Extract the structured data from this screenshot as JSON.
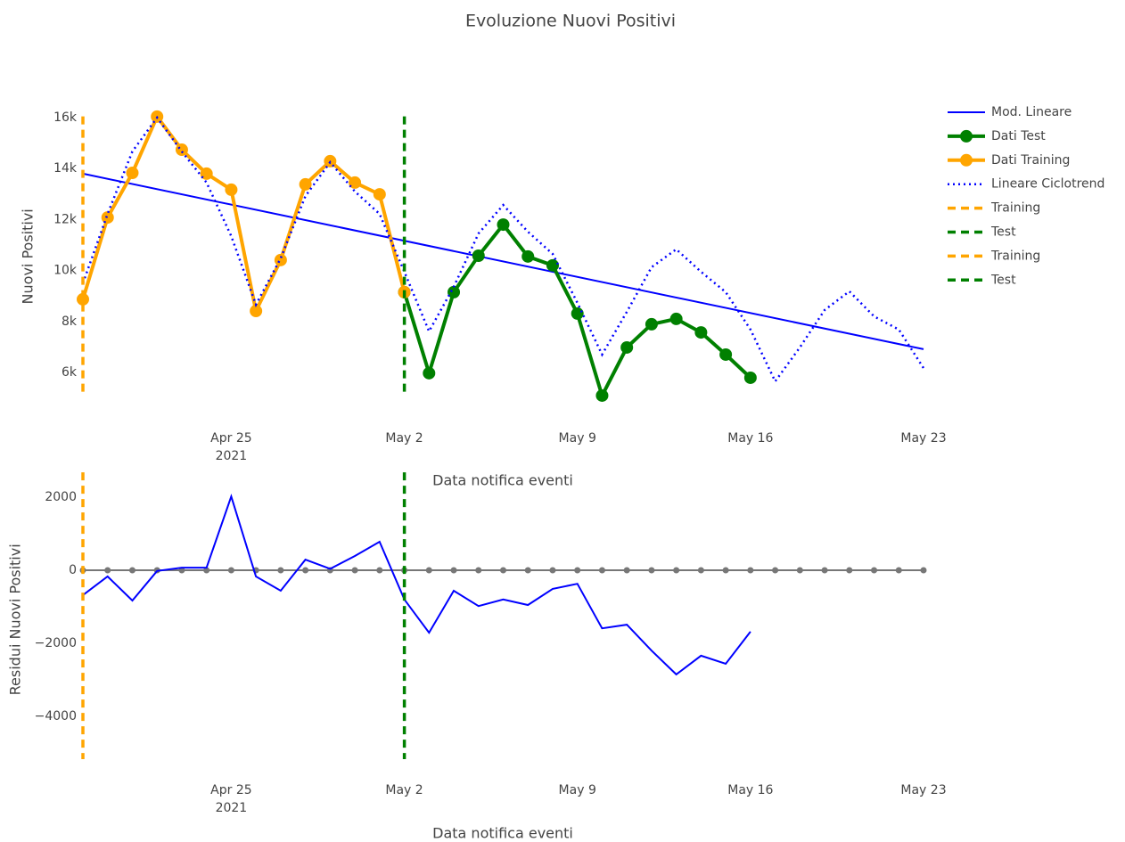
{
  "chart_data": [
    {
      "type": "line",
      "title": "Evoluzione Nuovi Positivi",
      "x_label": "Data notifica eventi",
      "y_label": "Nuovi Positivi",
      "xlim": [
        "2021-04-19",
        "2021-05-23"
      ],
      "xticks": [
        {
          "value": "2021-04-25",
          "label": "Apr 25"
        },
        {
          "value": "2021-05-02",
          "label": "May 2"
        },
        {
          "value": "2021-05-09",
          "label": "May 9"
        },
        {
          "value": "2021-05-16",
          "label": "May 16"
        },
        {
          "value": "2021-05-23",
          "label": "May 23"
        }
      ],
      "xtick_year": "2021",
      "ylim": [
        4600,
        16500
      ],
      "yticks": [
        {
          "value": 6000,
          "label": "6k"
        },
        {
          "value": 8000,
          "label": "8k"
        },
        {
          "value": 10000,
          "label": "10k"
        },
        {
          "value": 12000,
          "label": "12k"
        },
        {
          "value": 14000,
          "label": "14k"
        },
        {
          "value": 16000,
          "label": "16k"
        }
      ],
      "grid": false,
      "legend": "outside-right",
      "series": [
        {
          "name": "Mod. Lineare",
          "color": "#0000ff",
          "line_style": "solid",
          "line_width": 2,
          "markers": false,
          "x": [
            "2021-04-19",
            "2021-05-23"
          ],
          "values": [
            13800,
            6910
          ]
        },
        {
          "name": "Dati Test",
          "color": "#008000",
          "line_style": "solid",
          "line_width": 4,
          "markers": true,
          "marker_size": 7,
          "x": [
            "2021-05-02",
            "2021-05-03",
            "2021-05-04",
            "2021-05-05",
            "2021-05-06",
            "2021-05-07",
            "2021-05-08",
            "2021-05-09",
            "2021-05-10",
            "2021-05-11",
            "2021-05-12",
            "2021-05-13",
            "2021-05-14",
            "2021-05-15",
            "2021-05-16"
          ],
          "values": [
            9150,
            5970,
            9150,
            10580,
            11800,
            10550,
            10200,
            8310,
            5090,
            6980,
            7890,
            8100,
            7570,
            6700,
            5790
          ]
        },
        {
          "name": "Dati Training",
          "color": "#ffa500",
          "line_style": "solid",
          "line_width": 4,
          "markers": true,
          "marker_size": 7,
          "x": [
            "2021-04-19",
            "2021-04-20",
            "2021-04-21",
            "2021-04-22",
            "2021-04-23",
            "2021-04-24",
            "2021-04-25",
            "2021-04-26",
            "2021-04-27",
            "2021-04-28",
            "2021-04-29",
            "2021-04-30",
            "2021-05-01",
            "2021-05-02"
          ],
          "values": [
            8870,
            12080,
            13830,
            16040,
            14740,
            13800,
            13170,
            8410,
            10410,
            13380,
            14290,
            13450,
            12990,
            9150
          ]
        },
        {
          "name": "Lineare Ciclotrend",
          "color": "#0000ff",
          "line_style": "dot",
          "line_width": 2.5,
          "markers": false,
          "x": [
            "2021-04-19",
            "2021-04-20",
            "2021-04-21",
            "2021-04-22",
            "2021-04-23",
            "2021-04-24",
            "2021-04-25",
            "2021-04-26",
            "2021-04-27",
            "2021-04-28",
            "2021-04-29",
            "2021-04-30",
            "2021-05-01",
            "2021-05-02",
            "2021-05-03",
            "2021-05-04",
            "2021-05-05",
            "2021-05-06",
            "2021-05-07",
            "2021-05-08",
            "2021-05-09",
            "2021-05-10",
            "2021-05-11",
            "2021-05-12",
            "2021-05-13",
            "2021-05-14",
            "2021-05-15",
            "2021-05-16",
            "2021-05-17",
            "2021-05-18",
            "2021-05-19",
            "2021-05-20",
            "2021-05-21",
            "2021-05-22",
            "2021-05-23"
          ],
          "values": [
            9500,
            12220,
            14670,
            16000,
            14670,
            13450,
            11350,
            8660,
            10480,
            12920,
            14250,
            13100,
            12220,
            9950,
            7610,
            9360,
            11450,
            12570,
            11520,
            10650,
            8730,
            6700,
            8380,
            10130,
            10830,
            9950,
            9150,
            7680,
            5650,
            6980,
            8450,
            9180,
            8200,
            7680,
            6170
          ]
        },
        {
          "name": "Training",
          "color": "#ffa500",
          "line_style": "dash",
          "line_width": 3.5,
          "markers": false,
          "x": [
            "2021-04-19",
            "2021-04-19"
          ],
          "values": [
            16050,
            5060
          ]
        },
        {
          "name": "Test",
          "color": "#008000",
          "line_style": "dash",
          "line_width": 3.5,
          "markers": false,
          "x": [
            "2021-05-02",
            "2021-05-02"
          ],
          "values": [
            16050,
            5060
          ]
        }
      ]
    },
    {
      "type": "line",
      "x_label": "Data notifica eventi",
      "y_label": "Residui Nuovi Positivi",
      "xlim": [
        "2021-04-19",
        "2021-05-23"
      ],
      "xticks": [
        {
          "value": "2021-04-25",
          "label": "Apr 25"
        },
        {
          "value": "2021-05-02",
          "label": "May 2"
        },
        {
          "value": "2021-05-09",
          "label": "May 9"
        },
        {
          "value": "2021-05-16",
          "label": "May 16"
        },
        {
          "value": "2021-05-23",
          "label": "May 23"
        }
      ],
      "xtick_year": "2021",
      "ylim": [
        -5600,
        2900
      ],
      "yticks": [
        {
          "value": -4000,
          "label": "−4000"
        },
        {
          "value": -2000,
          "label": "−2000"
        },
        0,
        2000
      ],
      "grid": false,
      "series": [
        {
          "color": "#777777",
          "line_style": "solid",
          "line_width": 2,
          "markers": true,
          "marker_size": 3.5,
          "x": [
            "2021-04-19",
            "2021-04-20",
            "2021-04-21",
            "2021-04-22",
            "2021-04-23",
            "2021-04-24",
            "2021-04-25",
            "2021-04-26",
            "2021-04-27",
            "2021-04-28",
            "2021-04-29",
            "2021-04-30",
            "2021-05-01",
            "2021-05-02",
            "2021-05-03",
            "2021-05-04",
            "2021-05-05",
            "2021-05-06",
            "2021-05-07",
            "2021-05-08",
            "2021-05-09",
            "2021-05-10",
            "2021-05-11",
            "2021-05-12",
            "2021-05-13",
            "2021-05-14",
            "2021-05-15",
            "2021-05-16",
            "2021-05-17",
            "2021-05-18",
            "2021-05-19",
            "2021-05-20",
            "2021-05-21",
            "2021-05-22",
            "2021-05-23"
          ],
          "values": [
            0,
            0,
            0,
            0,
            0,
            0,
            0,
            0,
            0,
            0,
            0,
            0,
            0,
            0,
            0,
            0,
            0,
            0,
            0,
            0,
            0,
            0,
            0,
            0,
            0,
            0,
            0,
            0,
            0,
            0,
            0,
            0,
            0,
            0,
            0
          ]
        },
        {
          "color": "#0000ff",
          "line_style": "solid",
          "line_width": 2,
          "markers": false,
          "x": [
            "2021-04-19",
            "2021-04-20",
            "2021-04-21",
            "2021-04-22",
            "2021-04-23",
            "2021-04-24",
            "2021-04-25",
            "2021-04-26",
            "2021-04-27",
            "2021-04-28",
            "2021-04-29",
            "2021-04-30",
            "2021-05-01",
            "2021-05-02",
            "2021-05-03",
            "2021-05-04",
            "2021-05-05",
            "2021-05-06",
            "2021-05-07",
            "2021-05-08",
            "2021-05-09",
            "2021-05-10",
            "2021-05-11",
            "2021-05-12",
            "2021-05-13",
            "2021-05-14",
            "2021-05-15",
            "2021-05-16"
          ],
          "values": [
            -680,
            -170,
            -830,
            -20,
            70,
            70,
            2020,
            -170,
            -560,
            290,
            40,
            390,
            780,
            -800,
            -1710,
            -560,
            -980,
            -800,
            -950,
            -510,
            -370,
            -1590,
            -1490,
            -2200,
            -2850,
            -2340,
            -2560,
            -1680
          ]
        },
        {
          "name": "Training",
          "color": "#ffa500",
          "line_style": "dash",
          "line_width": 3.5,
          "markers": false,
          "x": [
            "2021-04-19",
            "2021-04-19"
          ],
          "values": [
            2680,
            -5170
          ]
        },
        {
          "name": "Test",
          "color": "#008000",
          "line_style": "dash",
          "line_width": 3.5,
          "markers": false,
          "x": [
            "2021-05-02",
            "2021-05-02"
          ],
          "values": [
            2680,
            -5170
          ]
        }
      ]
    }
  ]
}
